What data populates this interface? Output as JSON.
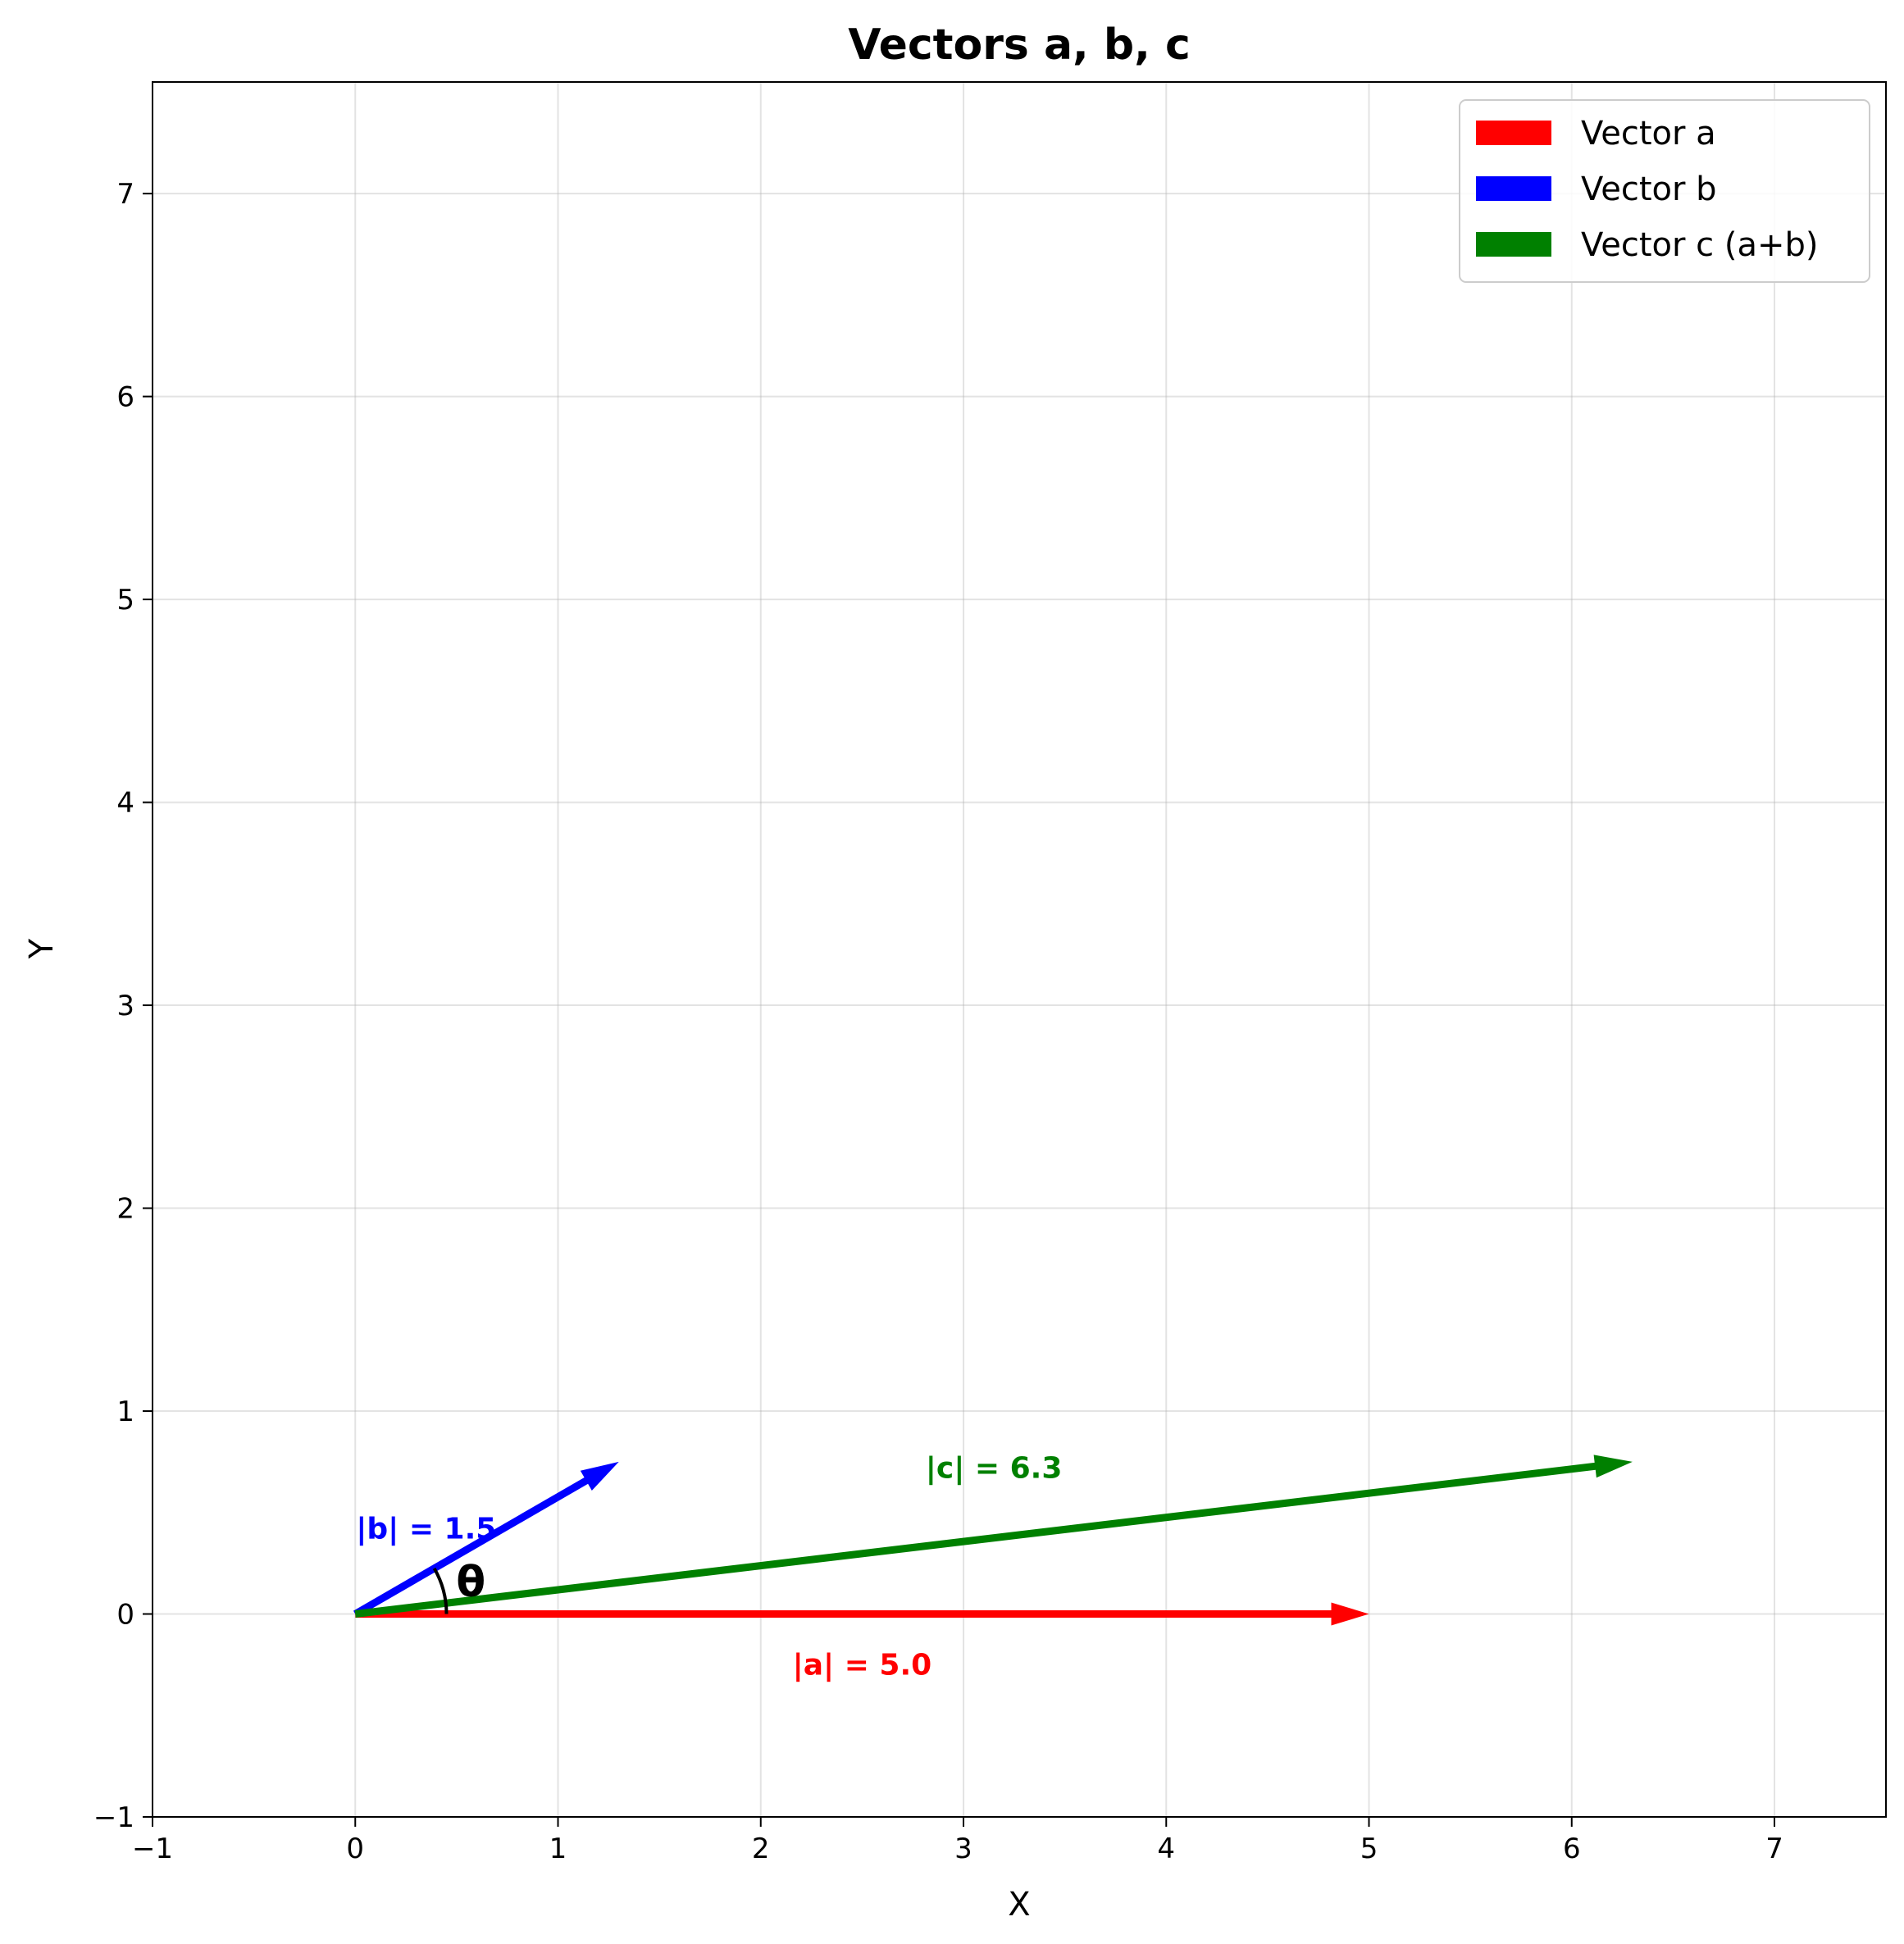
{
  "chart_data": {
    "type": "vector",
    "title": "Vectors a, b, c",
    "xlabel": "X",
    "ylabel": "Y",
    "xlim": [
      -1,
      7.55
    ],
    "ylim": [
      -1,
      7.55
    ],
    "xticks": [
      -1,
      0,
      1,
      2,
      3,
      4,
      5,
      6,
      7
    ],
    "yticks": [
      -1,
      0,
      1,
      2,
      3,
      4,
      5,
      6,
      7
    ],
    "xtick_labels": [
      "−1",
      "0",
      "1",
      "2",
      "3",
      "4",
      "5",
      "6",
      "7"
    ],
    "ytick_labels": [
      "−1",
      "0",
      "1",
      "2",
      "3",
      "4",
      "5",
      "6",
      "7"
    ],
    "grid": true,
    "legend_position": "top-right",
    "vectors": [
      {
        "id": "a",
        "name": "Vector a",
        "start": [
          0,
          0
        ],
        "end": [
          5.0,
          0.0
        ],
        "color": "#ff0000",
        "label": "|a| = 5.0",
        "label_at": [
          2.5,
          -0.25
        ]
      },
      {
        "id": "b",
        "name": "Vector b",
        "start": [
          0,
          0
        ],
        "end": [
          1.3,
          0.75
        ],
        "color": "#0000ff",
        "label": "|b| = 1.5",
        "label_at": [
          0.35,
          0.42
        ]
      },
      {
        "id": "c",
        "name": "Vector c (a+b)",
        "start": [
          0,
          0
        ],
        "end": [
          6.3,
          0.75
        ],
        "color": "#008000",
        "label": "|c| = 6.3",
        "label_at": [
          3.15,
          0.72
        ]
      }
    ],
    "angle_annotation": {
      "label": "θ",
      "radius": 0.45,
      "from_deg": 0,
      "to_deg": 30,
      "label_at": [
        0.57,
        0.16
      ]
    }
  }
}
